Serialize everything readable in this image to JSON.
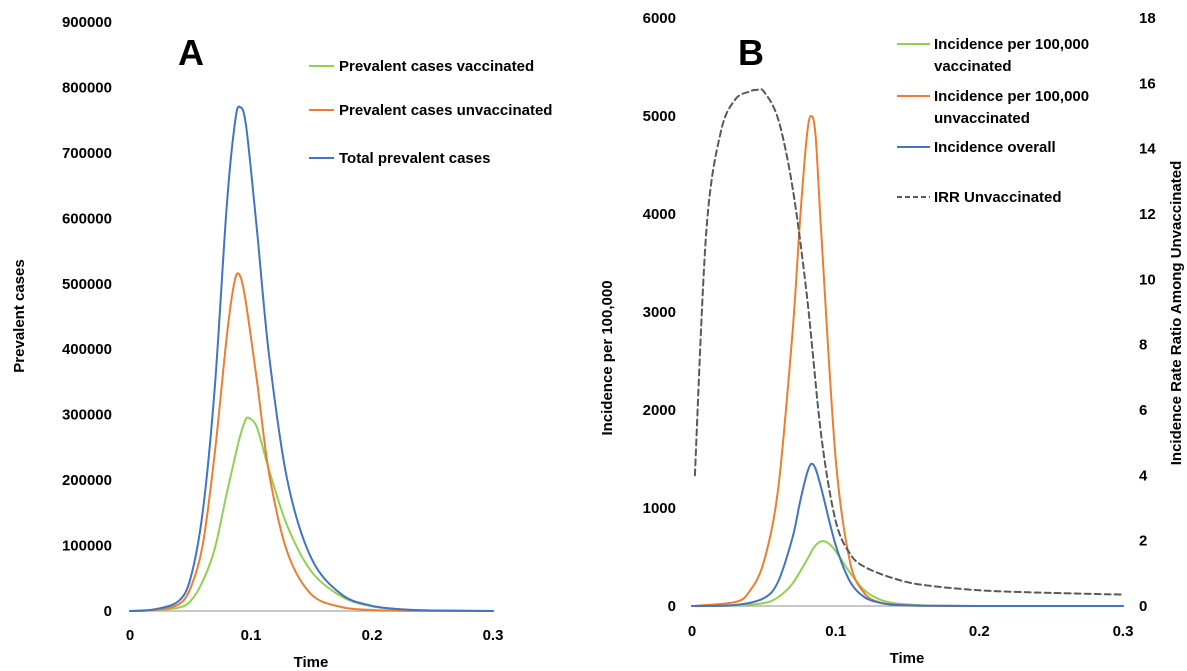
{
  "chart_data": [
    {
      "panel": "A",
      "type": "line",
      "ylabel": "Prevalent cases",
      "xlabel": "Time",
      "xlim": [
        0,
        0.3
      ],
      "ylim": [
        0,
        900000
      ],
      "xticks": [
        "0",
        "0.1",
        "0.2",
        "0.3"
      ],
      "yticks": [
        "0",
        "100000",
        "200000",
        "300000",
        "400000",
        "500000",
        "600000",
        "700000",
        "800000",
        "900000"
      ],
      "legend_position": "top-right",
      "series": [
        {
          "name": "Prevalent cases vaccinated",
          "color": "#92d050",
          "x": [
            0,
            0.02,
            0.04,
            0.05,
            0.06,
            0.07,
            0.08,
            0.09,
            0.095,
            0.098,
            0.105,
            0.115,
            0.13,
            0.15,
            0.175,
            0.2,
            0.225,
            0.25,
            0.3
          ],
          "y": [
            0,
            1000,
            5000,
            15000,
            45000,
            95000,
            180000,
            260000,
            290000,
            295000,
            280000,
            215000,
            130000,
            60000,
            22000,
            7000,
            2500,
            800,
            0
          ]
        },
        {
          "name": "Prevalent cases unvaccinated",
          "color": "#ed7d31",
          "x": [
            0,
            0.02,
            0.04,
            0.05,
            0.06,
            0.07,
            0.08,
            0.086,
            0.09,
            0.095,
            0.105,
            0.115,
            0.13,
            0.15,
            0.175,
            0.2,
            0.225,
            0.25,
            0.3
          ],
          "y": [
            0,
            1500,
            10000,
            35000,
            100000,
            240000,
            420000,
            500000,
            515000,
            480000,
            350000,
            210000,
            90000,
            25000,
            6000,
            1500,
            400,
            100,
            0
          ]
        },
        {
          "name": "Total prevalent cases",
          "color": "#4472c4",
          "x": [
            0,
            0.02,
            0.04,
            0.05,
            0.06,
            0.07,
            0.08,
            0.087,
            0.091,
            0.096,
            0.105,
            0.115,
            0.13,
            0.15,
            0.175,
            0.2,
            0.225,
            0.25,
            0.3
          ],
          "y": [
            0,
            2500,
            15000,
            50000,
            150000,
            340000,
            620000,
            750000,
            770000,
            740000,
            580000,
            390000,
            200000,
            80000,
            25000,
            8000,
            2500,
            800,
            0
          ]
        }
      ]
    },
    {
      "panel": "B",
      "type": "line",
      "ylabel": "Incidence per 100,000",
      "y2label": "Incidence Rate Ratio Among Unvaccinated",
      "xlabel": "Time",
      "xlim": [
        0,
        0.3
      ],
      "ylim": [
        0,
        6000
      ],
      "y2lim": [
        0,
        18
      ],
      "xticks": [
        "0",
        "0.1",
        "0.2",
        "0.3"
      ],
      "yticks": [
        "0",
        "1000",
        "2000",
        "3000",
        "4000",
        "5000",
        "6000"
      ],
      "y2ticks": [
        "0",
        "2",
        "4",
        "6",
        "8",
        "10",
        "12",
        "14",
        "16",
        "18"
      ],
      "legend_position": "top-right",
      "series": [
        {
          "name_lines": [
            "Incidence per 100,000",
            "vaccinated"
          ],
          "color": "#92d050",
          "axis": "left",
          "x": [
            0,
            0.03,
            0.05,
            0.06,
            0.07,
            0.08,
            0.085,
            0.09,
            0.095,
            0.1,
            0.11,
            0.12,
            0.13,
            0.14,
            0.16,
            0.18,
            0.2,
            0.25,
            0.3
          ],
          "y": [
            0,
            5,
            30,
            90,
            230,
            470,
            600,
            660,
            640,
            560,
            340,
            160,
            70,
            30,
            8,
            2,
            0,
            0,
            0
          ]
        },
        {
          "name_lines": [
            "Incidence per 100,000",
            "unvaccinated"
          ],
          "color": "#ed7d31",
          "axis": "left",
          "x": [
            0,
            0.03,
            0.04,
            0.05,
            0.06,
            0.07,
            0.075,
            0.08,
            0.083,
            0.086,
            0.09,
            0.1,
            0.11,
            0.12,
            0.13,
            0.14,
            0.16,
            0.2,
            0.3
          ],
          "y": [
            0,
            40,
            150,
            450,
            1200,
            2800,
            3900,
            4800,
            5000,
            4800,
            3800,
            1500,
            450,
            130,
            40,
            15,
            3,
            0,
            0
          ]
        },
        {
          "name_lines": [
            "Incidence overall"
          ],
          "color": "#4472c4",
          "axis": "left",
          "x": [
            0,
            0.03,
            0.05,
            0.06,
            0.07,
            0.075,
            0.08,
            0.083,
            0.086,
            0.09,
            0.1,
            0.11,
            0.12,
            0.13,
            0.14,
            0.16,
            0.2,
            0.3
          ],
          "y": [
            0,
            10,
            80,
            250,
            700,
            1050,
            1350,
            1450,
            1400,
            1200,
            620,
            250,
            90,
            35,
            12,
            3,
            0,
            0
          ]
        },
        {
          "name_lines": [
            "IRR Unvaccinated"
          ],
          "color": "#595959",
          "axis": "right",
          "dashed": true,
          "x": [
            0.002,
            0.01,
            0.02,
            0.03,
            0.04,
            0.045,
            0.05,
            0.06,
            0.07,
            0.08,
            0.09,
            0.1,
            0.11,
            0.12,
            0.14,
            0.16,
            0.2,
            0.25,
            0.3
          ],
          "y": [
            4.0,
            11.5,
            14.5,
            15.5,
            15.75,
            15.8,
            15.75,
            14.9,
            12.8,
            9.5,
            5.2,
            2.6,
            1.6,
            1.2,
            0.85,
            0.65,
            0.48,
            0.4,
            0.35
          ]
        }
      ]
    }
  ],
  "panel_labels": {
    "a": "A",
    "b": "B"
  }
}
